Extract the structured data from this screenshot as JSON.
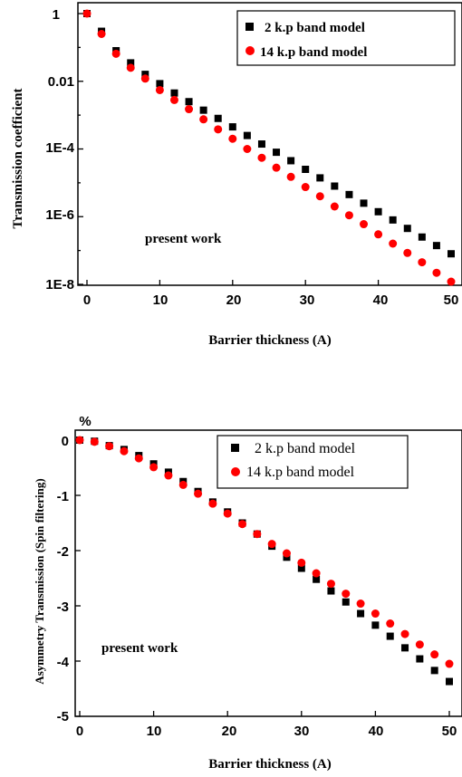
{
  "chart_data": [
    {
      "type": "scatter",
      "title": "",
      "xlabel": "Barrier thickness (A)",
      "ylabel": "Transmission coefficient",
      "xlim": [
        -1,
        51
      ],
      "yscale": "log",
      "ylim_log10": [
        -8,
        0.3
      ],
      "xticks": [
        "0",
        "10",
        "20",
        "30",
        "40",
        "50"
      ],
      "yticks": [
        "1",
        "0.01",
        "1E-4",
        "1E-6",
        "1E-8"
      ],
      "annotation": "present work",
      "legend_position": "top-right",
      "series": [
        {
          "name": "2 k.p band model",
          "marker": "square",
          "color": "#000000",
          "x": [
            0,
            2,
            4,
            6,
            8,
            10,
            12,
            14,
            16,
            18,
            20,
            22,
            24,
            26,
            28,
            30,
            32,
            34,
            36,
            38,
            40,
            42,
            44,
            46,
            48,
            50
          ],
          "y": [
            1,
            0.3,
            0.08,
            0.035,
            0.016,
            0.0085,
            0.0045,
            0.0025,
            0.0014,
            0.0008,
            0.00045,
            0.00025,
            0.00014,
            8e-05,
            4.5e-05,
            2.5e-05,
            1.4e-05,
            8e-06,
            4.5e-06,
            2.5e-06,
            1.4e-06,
            8e-07,
            4.5e-07,
            2.5e-07,
            1.4e-07,
            8e-08
          ]
        },
        {
          "name": "14 k.p band model",
          "marker": "circle",
          "color": "#ff0000",
          "x": [
            0,
            2,
            4,
            6,
            8,
            10,
            12,
            14,
            16,
            18,
            20,
            22,
            24,
            26,
            28,
            30,
            32,
            34,
            36,
            38,
            40,
            42,
            44,
            46,
            48,
            50
          ],
          "y": [
            1,
            0.25,
            0.065,
            0.025,
            0.012,
            0.0055,
            0.0028,
            0.0015,
            0.00075,
            0.00038,
            0.0002,
            0.0001,
            5.5e-05,
            2.8e-05,
            1.5e-05,
            7.5e-06,
            4e-06,
            2e-06,
            1.1e-06,
            6e-07,
            3e-07,
            1.6e-07,
            8.5e-08,
            4.5e-08,
            2.2e-08,
            1.2e-08
          ]
        }
      ]
    },
    {
      "type": "scatter",
      "title": "",
      "xlabel": "Barrier thickness (A)",
      "ylabel": "Asymmetry Transmission (Spin filtering)",
      "yunit": "%",
      "xlim": [
        0,
        51
      ],
      "ylim": [
        -5,
        0.25
      ],
      "xticks": [
        "0",
        "10",
        "20",
        "30",
        "40",
        "50"
      ],
      "yticks": [
        "0",
        "-1",
        "-2",
        "-3",
        "-4",
        "-5"
      ],
      "annotation": "present work",
      "legend_position": "top-right",
      "series": [
        {
          "name": "2 k.p band model",
          "marker": "square",
          "color": "#000000",
          "x": [
            0,
            2,
            4,
            6,
            8,
            10,
            12,
            14,
            16,
            18,
            20,
            22,
            24,
            26,
            28,
            30,
            32,
            34,
            36,
            38,
            40,
            42,
            44,
            46,
            48,
            50
          ],
          "y": [
            0,
            -0.02,
            -0.1,
            -0.17,
            -0.28,
            -0.43,
            -0.58,
            -0.75,
            -0.93,
            -1.12,
            -1.3,
            -1.5,
            -1.7,
            -1.92,
            -2.12,
            -2.32,
            -2.52,
            -2.73,
            -2.93,
            -3.14,
            -3.35,
            -3.55,
            -3.76,
            -3.96,
            -4.17,
            -4.37
          ]
        },
        {
          "name": "14 k.p band model",
          "marker": "circle",
          "color": "#ff0000",
          "x": [
            0,
            2,
            4,
            6,
            8,
            10,
            12,
            14,
            16,
            18,
            20,
            22,
            24,
            26,
            28,
            30,
            32,
            34,
            36,
            38,
            40,
            42,
            44,
            46,
            48,
            50
          ],
          "y": [
            0,
            -0.03,
            -0.11,
            -0.2,
            -0.33,
            -0.49,
            -0.64,
            -0.81,
            -0.97,
            -1.15,
            -1.33,
            -1.52,
            -1.7,
            -1.88,
            -2.05,
            -2.22,
            -2.41,
            -2.6,
            -2.78,
            -2.96,
            -3.14,
            -3.32,
            -3.51,
            -3.7,
            -3.88,
            -4.05
          ]
        }
      ]
    }
  ]
}
